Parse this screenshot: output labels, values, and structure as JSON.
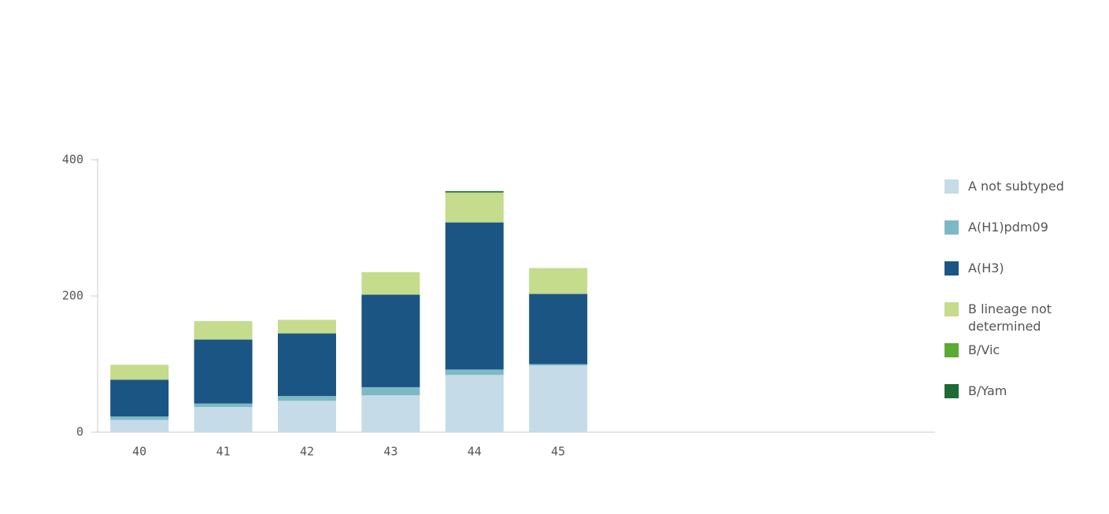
{
  "chart_data": {
    "type": "stacked-bar",
    "categories": [
      "40",
      "41",
      "42",
      "43",
      "44",
      "45",
      null,
      null,
      null,
      null
    ],
    "series": [
      {
        "name": "A not subtyped",
        "color": "#c5dbe8",
        "values": [
          18,
          37,
          46,
          54,
          84,
          98,
          null,
          null,
          null,
          null
        ]
      },
      {
        "name": "A(H1)pdm09",
        "color": "#7db9c5",
        "values": [
          5,
          5,
          7,
          12,
          8,
          2,
          null,
          null,
          null,
          null
        ]
      },
      {
        "name": "A(H3)",
        "color": "#1b5584",
        "values": [
          54,
          94,
          92,
          136,
          216,
          103,
          null,
          null,
          null,
          null
        ]
      },
      {
        "name": "B lineage not determined",
        "color": "#c5dc8c",
        "values": [
          22,
          27,
          20,
          33,
          44,
          38,
          null,
          null,
          null,
          null
        ]
      },
      {
        "name": "B/Vic",
        "color": "#5aab32",
        "values": [
          0,
          0,
          0,
          0,
          0,
          0,
          null,
          null,
          null,
          null
        ]
      },
      {
        "name": "B/Yam",
        "color": "#1e6b35",
        "values": [
          0,
          0,
          0,
          0,
          2,
          0,
          null,
          null,
          null,
          null
        ]
      }
    ],
    "ylim": [
      0,
      400
    ],
    "yticks": [
      0,
      200,
      400
    ],
    "legend": "right"
  }
}
